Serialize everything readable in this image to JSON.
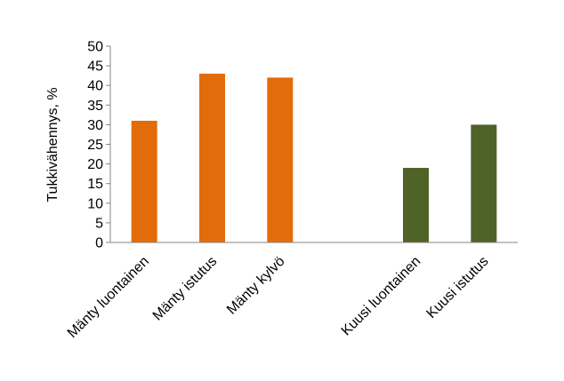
{
  "chart_data": {
    "type": "bar",
    "title": "",
    "xlabel": "",
    "ylabel": "Tukkivähennys, %",
    "ylim": [
      0,
      50
    ],
    "yticks": [
      0,
      5,
      10,
      15,
      20,
      25,
      30,
      35,
      40,
      45,
      50
    ],
    "grid": false,
    "legend": "none",
    "categories": [
      "Mänty luontainen",
      "Mänty istutus",
      "Mänty kylvö",
      "",
      "Kuusi luontainen",
      "Kuusi istutus"
    ],
    "values": [
      31,
      43,
      42,
      null,
      19,
      30
    ],
    "colors": [
      "#E36C0A",
      "#E36C0A",
      "#E36C0A",
      "#ffffff",
      "#4F6228",
      "#4F6228"
    ]
  }
}
